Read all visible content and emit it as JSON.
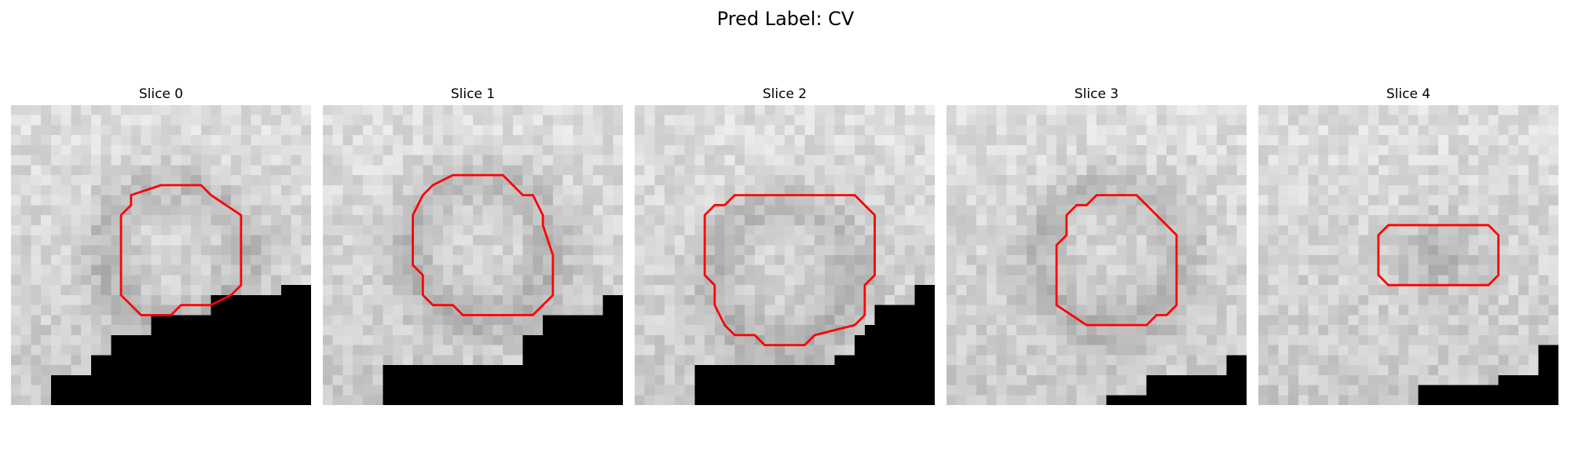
{
  "figure": {
    "suptitle": "Pred Label: CV"
  },
  "panels": [
    {
      "title": "Slice 0",
      "seed": 11,
      "structure": "dark ring",
      "mask_color": "#000000",
      "contour_color": "#ff0000",
      "contour": [
        [
          12,
          9
        ],
        [
          15,
          8
        ],
        [
          19,
          8
        ],
        [
          20,
          9
        ],
        [
          23,
          11
        ],
        [
          23,
          18
        ],
        [
          22,
          19
        ],
        [
          20,
          20
        ],
        [
          17,
          20
        ],
        [
          16,
          21
        ],
        [
          13,
          21
        ],
        [
          12,
          20
        ],
        [
          11,
          19
        ],
        [
          11,
          11
        ],
        [
          12,
          10
        ]
      ],
      "mask_rows": [
        [
          17,
          30,
          30
        ],
        [
          18,
          27,
          30
        ],
        [
          19,
          20,
          30
        ],
        [
          20,
          20,
          30
        ],
        [
          21,
          14,
          30
        ],
        [
          22,
          14,
          30
        ],
        [
          23,
          10,
          30
        ],
        [
          24,
          10,
          30
        ],
        [
          25,
          8,
          30
        ],
        [
          26,
          8,
          30
        ],
        [
          27,
          4,
          30
        ],
        [
          28,
          4,
          30
        ],
        [
          29,
          4,
          30
        ],
        [
          30,
          4,
          30
        ]
      ]
    },
    {
      "title": "Slice 1",
      "seed": 23,
      "structure": "dark ring",
      "mask_color": "#000000",
      "contour_color": "#ff0000",
      "contour": [
        [
          11,
          8
        ],
        [
          13,
          7
        ],
        [
          18,
          7
        ],
        [
          20,
          9
        ],
        [
          21,
          9
        ],
        [
          22,
          11
        ],
        [
          22,
          12
        ],
        [
          23,
          15
        ],
        [
          23,
          19
        ],
        [
          22,
          20
        ],
        [
          21,
          21
        ],
        [
          14,
          21
        ],
        [
          13,
          20
        ],
        [
          11,
          20
        ],
        [
          10,
          19
        ],
        [
          10,
          17
        ],
        [
          9,
          16
        ],
        [
          9,
          11
        ],
        [
          10,
          9
        ]
      ],
      "mask_rows": [
        [
          17,
          30,
          30
        ],
        [
          18,
          30,
          30
        ],
        [
          19,
          28,
          30
        ],
        [
          20,
          28,
          30
        ],
        [
          21,
          22,
          30
        ],
        [
          22,
          22,
          30
        ],
        [
          23,
          20,
          30
        ],
        [
          24,
          20,
          30
        ],
        [
          25,
          20,
          30
        ],
        [
          26,
          6,
          30
        ],
        [
          27,
          6,
          30
        ],
        [
          28,
          6,
          30
        ],
        [
          29,
          6,
          30
        ],
        [
          30,
          6,
          30
        ]
      ]
    },
    {
      "title": "Slice 2",
      "seed": 37,
      "structure": "dark ring",
      "mask_color": "#000000",
      "contour_color": "#ff0000",
      "contour": [
        [
          9,
          10
        ],
        [
          10,
          9
        ],
        [
          22,
          9
        ],
        [
          23,
          10
        ],
        [
          24,
          11
        ],
        [
          24,
          17
        ],
        [
          23,
          18
        ],
        [
          23,
          21
        ],
        [
          22,
          22
        ],
        [
          18,
          23
        ],
        [
          17,
          24
        ],
        [
          13,
          24
        ],
        [
          12,
          23
        ],
        [
          10,
          23
        ],
        [
          9,
          22
        ],
        [
          8,
          20
        ],
        [
          8,
          18
        ],
        [
          7,
          17
        ],
        [
          7,
          11
        ],
        [
          8,
          10
        ]
      ],
      "mask_rows": [
        [
          17,
          30,
          30
        ],
        [
          18,
          28,
          30
        ],
        [
          19,
          28,
          30
        ],
        [
          20,
          24,
          30
        ],
        [
          21,
          24,
          30
        ],
        [
          22,
          23,
          30
        ],
        [
          23,
          22,
          30
        ],
        [
          24,
          22,
          30
        ],
        [
          25,
          20,
          30
        ],
        [
          26,
          6,
          30
        ],
        [
          27,
          6,
          30
        ],
        [
          28,
          6,
          30
        ],
        [
          29,
          6,
          30
        ],
        [
          30,
          6,
          30
        ]
      ]
    },
    {
      "title": "Slice 3",
      "seed": 51,
      "structure": "dark ring",
      "mask_color": "#000000",
      "contour_color": "#ff0000",
      "contour": [
        [
          12,
          11
        ],
        [
          13,
          10
        ],
        [
          14,
          10
        ],
        [
          15,
          9
        ],
        [
          19,
          9
        ],
        [
          23,
          13
        ],
        [
          23,
          20
        ],
        [
          22,
          21
        ],
        [
          21,
          21
        ],
        [
          20,
          22
        ],
        [
          14,
          22
        ],
        [
          11,
          20
        ],
        [
          11,
          14
        ],
        [
          12,
          13
        ]
      ],
      "mask_rows": [
        [
          23,
          30,
          30
        ],
        [
          24,
          30,
          30
        ],
        [
          25,
          28,
          30
        ],
        [
          26,
          28,
          30
        ],
        [
          27,
          20,
          30
        ],
        [
          28,
          20,
          30
        ],
        [
          29,
          16,
          30
        ],
        [
          30,
          16,
          30
        ]
      ]
    },
    {
      "title": "Slice 4",
      "seed": 67,
      "structure": "dark blob",
      "mask_color": "#000000",
      "contour_color": "#ff0000",
      "contour": [
        [
          12,
          13
        ],
        [
          13,
          12
        ],
        [
          23,
          12
        ],
        [
          24,
          13
        ],
        [
          24,
          17
        ],
        [
          23,
          18
        ],
        [
          13,
          18
        ],
        [
          12,
          17
        ]
      ],
      "mask_rows": [
        [
          23,
          30,
          30
        ],
        [
          24,
          28,
          30
        ],
        [
          25,
          28,
          30
        ],
        [
          26,
          28,
          30
        ],
        [
          27,
          24,
          30
        ],
        [
          28,
          16,
          30
        ],
        [
          29,
          16,
          30
        ],
        [
          30,
          16,
          30
        ]
      ]
    }
  ]
}
